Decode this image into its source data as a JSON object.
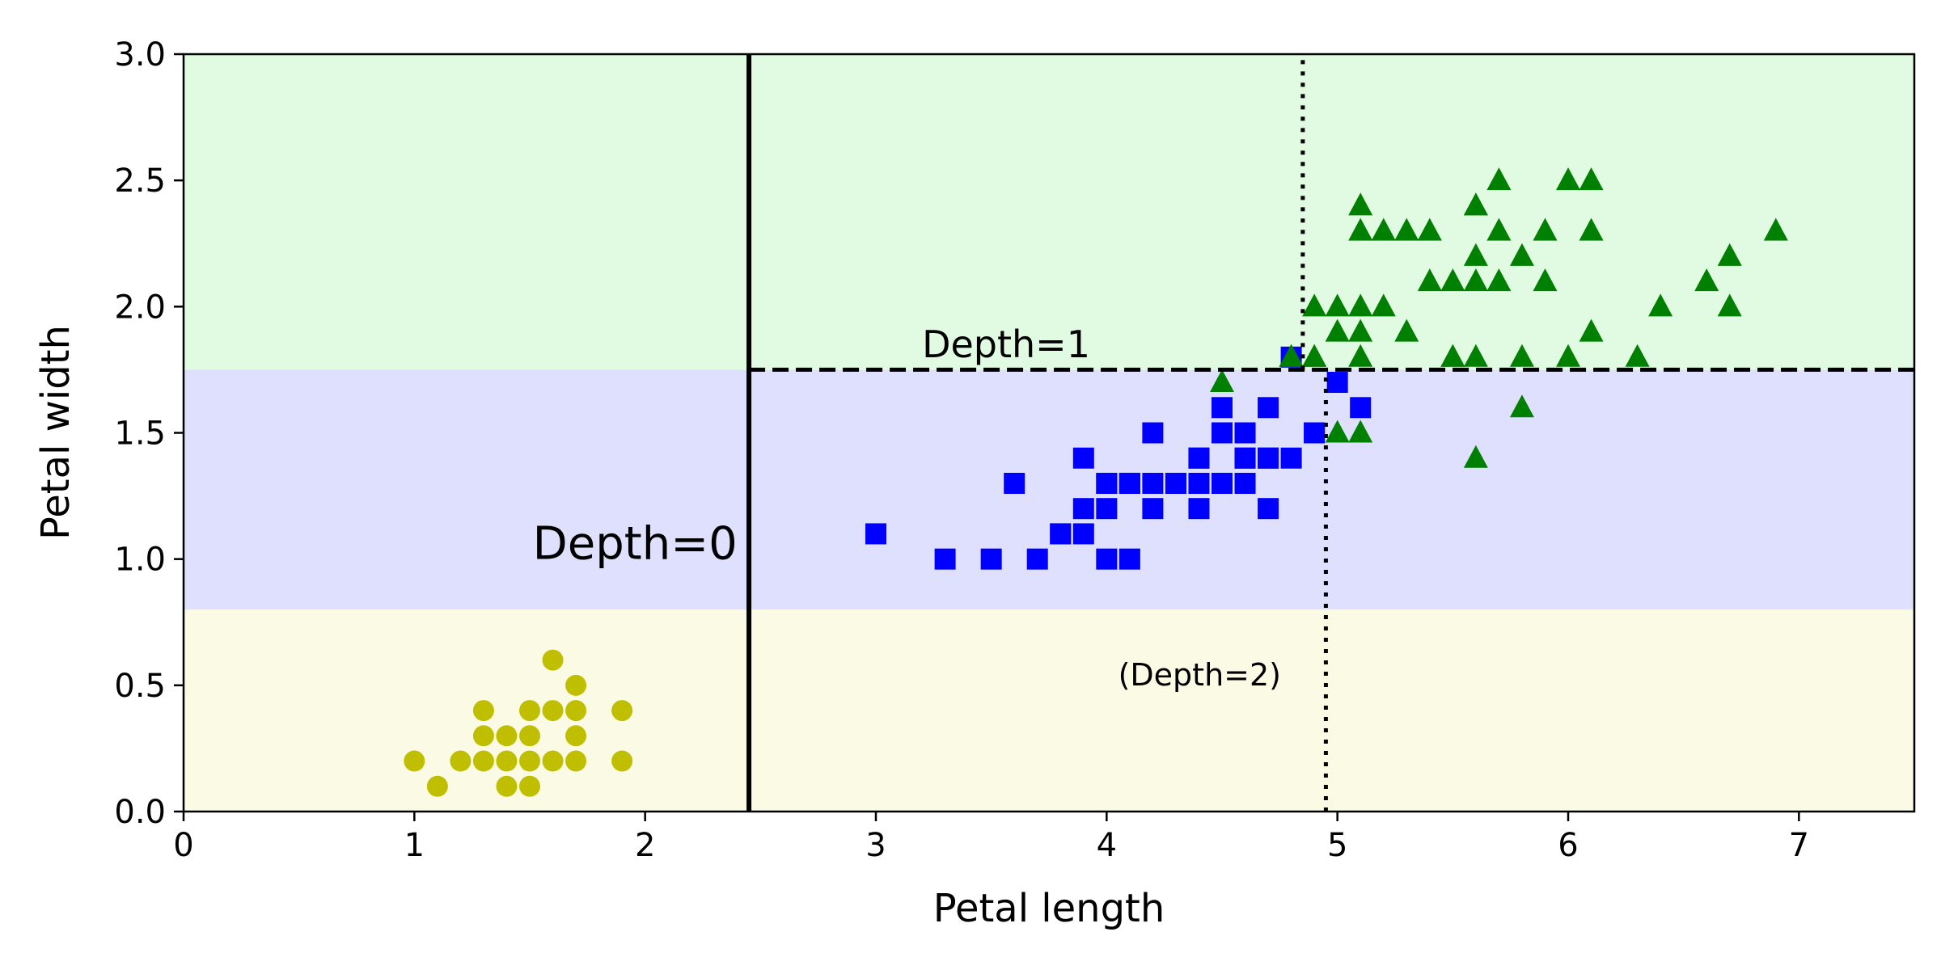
{
  "chart_data": {
    "type": "scatter",
    "xlabel": "Petal length",
    "ylabel": "Petal width",
    "xlim": [
      0,
      7.5
    ],
    "ylim": [
      0,
      3
    ],
    "x_ticks": [
      0,
      1,
      2,
      3,
      4,
      5,
      6,
      7
    ],
    "x_tick_labels": [
      "0",
      "1",
      "2",
      "3",
      "4",
      "5",
      "6",
      "7"
    ],
    "y_ticks": [
      0,
      0.5,
      1,
      1.5,
      2,
      2.5,
      3
    ],
    "y_tick_labels": [
      "0.0",
      "0.5",
      "1.0",
      "1.5",
      "2.0",
      "2.5",
      "3.0"
    ],
    "grid": false,
    "regions": [
      {
        "x0": 0,
        "x1": 7.5,
        "y0": 0,
        "y1": 0.8,
        "color": "#fafae5"
      },
      {
        "x0": 0,
        "x1": 7.5,
        "y0": 0.8,
        "y1": 1.75,
        "color": "#dfe0fd"
      },
      {
        "x0": 0,
        "x1": 7.5,
        "y0": 1.75,
        "y1": 3,
        "color": "#e0fbe1"
      }
    ],
    "boundaries": [
      {
        "style": "solid",
        "x": [
          2.45,
          2.45
        ],
        "y": [
          0,
          3
        ]
      },
      {
        "style": "dashed",
        "x": [
          2.45,
          7.5
        ],
        "y": [
          1.75,
          1.75
        ]
      },
      {
        "style": "dotted",
        "x": [
          4.95,
          4.95
        ],
        "y": [
          0,
          1.75
        ]
      },
      {
        "style": "dotted",
        "x": [
          4.85,
          4.85
        ],
        "y": [
          1.75,
          3
        ]
      }
    ],
    "annotations": [
      {
        "text": "Depth=0",
        "x": 2.4,
        "y": 1.0,
        "size": "large",
        "align": "end"
      },
      {
        "text": "Depth=1",
        "x": 3.2,
        "y": 1.8,
        "size": "medium",
        "align": "start"
      },
      {
        "text": "(Depth=2)",
        "x": 4.05,
        "y": 0.5,
        "size": "small",
        "align": "start"
      }
    ],
    "series": [
      {
        "marker": "circle",
        "color": "#bfbf00",
        "points": [
          [
            1.4,
            0.2
          ],
          [
            1.3,
            0.2
          ],
          [
            1.5,
            0.2
          ],
          [
            1.7,
            0.4
          ],
          [
            1.4,
            0.3
          ],
          [
            1.5,
            0.1
          ],
          [
            1.6,
            0.2
          ],
          [
            1.4,
            0.1
          ],
          [
            1.1,
            0.1
          ],
          [
            1.2,
            0.2
          ],
          [
            1.3,
            0.4
          ],
          [
            1.7,
            0.3
          ],
          [
            1.5,
            0.3
          ],
          [
            1.0,
            0.2
          ],
          [
            1.9,
            0.2
          ],
          [
            1.6,
            0.4
          ],
          [
            1.5,
            0.4
          ],
          [
            1.3,
            0.3
          ],
          [
            1.6,
            0.6
          ],
          [
            1.9,
            0.4
          ],
          [
            1.7,
            0.2
          ],
          [
            1.7,
            0.5
          ]
        ]
      },
      {
        "marker": "square",
        "color": "#0000ff",
        "points": [
          [
            4.7,
            1.4
          ],
          [
            4.5,
            1.5
          ],
          [
            4.9,
            1.5
          ],
          [
            4.0,
            1.3
          ],
          [
            4.6,
            1.5
          ],
          [
            4.5,
            1.3
          ],
          [
            4.7,
            1.6
          ],
          [
            3.3,
            1.0
          ],
          [
            4.6,
            1.3
          ],
          [
            3.9,
            1.4
          ],
          [
            3.5,
            1.0
          ],
          [
            4.2,
            1.5
          ],
          [
            4.0,
            1.0
          ],
          [
            4.7,
            1.4
          ],
          [
            3.6,
            1.3
          ],
          [
            4.4,
            1.4
          ],
          [
            4.1,
            1.0
          ],
          [
            4.5,
            1.5
          ],
          [
            3.9,
            1.1
          ],
          [
            4.8,
            1.8
          ],
          [
            4.0,
            1.3
          ],
          [
            4.9,
            1.5
          ],
          [
            4.7,
            1.2
          ],
          [
            4.3,
            1.3
          ],
          [
            4.4,
            1.4
          ],
          [
            4.8,
            1.4
          ],
          [
            5.0,
            1.7
          ],
          [
            3.8,
            1.1
          ],
          [
            3.7,
            1.0
          ],
          [
            3.9,
            1.2
          ],
          [
            5.1,
            1.6
          ],
          [
            4.5,
            1.6
          ],
          [
            4.4,
            1.3
          ],
          [
            4.1,
            1.3
          ],
          [
            4.0,
            1.2
          ],
          [
            4.4,
            1.2
          ],
          [
            4.6,
            1.4
          ],
          [
            3.0,
            1.1
          ],
          [
            4.2,
            1.3
          ],
          [
            4.2,
            1.2
          ],
          [
            4.3,
            1.3
          ],
          [
            4.6,
            1.4
          ],
          [
            4.1,
            1.3
          ],
          [
            4.5,
            1.3
          ],
          [
            4.1,
            1.3
          ],
          [
            3.8,
            1.1
          ]
        ]
      },
      {
        "marker": "triangle",
        "color": "#008000",
        "points": [
          [
            6.0,
            2.5
          ],
          [
            5.1,
            1.9
          ],
          [
            5.9,
            2.1
          ],
          [
            5.6,
            1.8
          ],
          [
            5.8,
            2.2
          ],
          [
            6.6,
            2.1
          ],
          [
            4.5,
            1.7
          ],
          [
            6.3,
            1.8
          ],
          [
            5.8,
            1.8
          ],
          [
            6.1,
            2.5
          ],
          [
            5.1,
            2.0
          ],
          [
            5.3,
            1.9
          ],
          [
            5.5,
            2.1
          ],
          [
            5.0,
            2.0
          ],
          [
            5.1,
            2.4
          ],
          [
            5.3,
            2.3
          ],
          [
            5.5,
            1.8
          ],
          [
            6.7,
            2.2
          ],
          [
            6.9,
            2.3
          ],
          [
            5.0,
            1.5
          ],
          [
            5.7,
            2.3
          ],
          [
            4.9,
            2.0
          ],
          [
            6.7,
            2.0
          ],
          [
            4.9,
            1.8
          ],
          [
            5.7,
            2.1
          ],
          [
            6.0,
            1.8
          ],
          [
            4.8,
            1.8
          ],
          [
            4.9,
            1.8
          ],
          [
            5.6,
            2.1
          ],
          [
            5.8,
            1.6
          ],
          [
            6.1,
            1.9
          ],
          [
            6.4,
            2.0
          ],
          [
            5.6,
            2.2
          ],
          [
            5.1,
            1.5
          ],
          [
            5.6,
            1.4
          ],
          [
            6.1,
            2.3
          ],
          [
            5.6,
            2.4
          ],
          [
            5.5,
            1.8
          ],
          [
            4.8,
            1.8
          ],
          [
            5.4,
            2.1
          ],
          [
            5.6,
            2.4
          ],
          [
            5.1,
            2.3
          ],
          [
            5.9,
            2.3
          ],
          [
            5.7,
            2.5
          ],
          [
            5.2,
            2.3
          ],
          [
            5.0,
            1.9
          ],
          [
            5.2,
            2.0
          ],
          [
            5.4,
            2.3
          ],
          [
            5.1,
            1.8
          ]
        ]
      }
    ]
  }
}
